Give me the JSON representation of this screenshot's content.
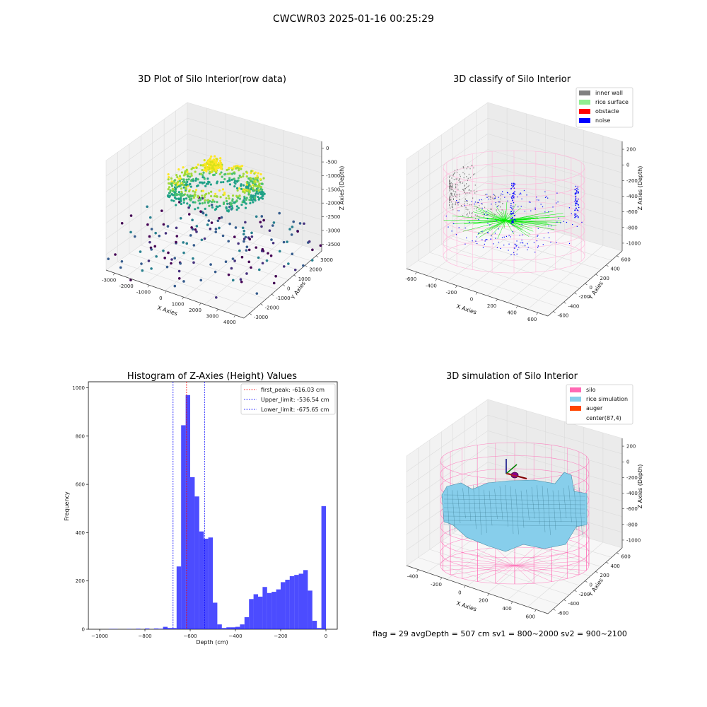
{
  "figure": {
    "suptitle": "CWCWR03 2025-01-16 00:25:29",
    "status_line": "flag = 29  avgDepth = 507 cm  sv1 = 800~2000  sv2 = 900~2100"
  },
  "chart_data": [
    {
      "type": "scatter",
      "projection": "3d",
      "title": "3D Plot of Silo Interior(row data)",
      "xlabel": "X Axies",
      "ylabel": "Y Axies",
      "zlabel": "Z Axies (Depth)",
      "x_ticks": [
        "-3000",
        "-2000",
        "-1000",
        "0",
        "1000",
        "2000",
        "3000",
        "4000"
      ],
      "y_ticks": [
        "-3000",
        "-2000",
        "-1000",
        "0",
        "1000",
        "2000",
        "3000"
      ],
      "z_ticks": [
        "0",
        "-500",
        "-1000",
        "-1500",
        "-2000",
        "-2500",
        "-3000",
        "-3500"
      ],
      "xlim": [
        -3000,
        4000
      ],
      "ylim": [
        -3000,
        3000
      ],
      "zlim": [
        -3500,
        0
      ],
      "colormap": "viridis",
      "description_points": "dense ring of points near depth -1800 to -2500 (green/yellow) with scattered points down to -3500 (purple)"
    },
    {
      "type": "scatter",
      "projection": "3d",
      "title": "3D classify of Silo Interior",
      "xlabel": "X Axies",
      "ylabel": "Y Axies",
      "zlabel": "Z Axies (Depth)",
      "x_ticks": [
        "-600",
        "-400",
        "-200",
        "0",
        "200",
        "400",
        "600"
      ],
      "y_ticks": [
        "-600",
        "-400",
        "-200",
        "0",
        "200",
        "400",
        "600"
      ],
      "z_ticks": [
        "200",
        "0",
        "-200",
        "-400",
        "-600",
        "-800",
        "-1000"
      ],
      "xlim": [
        -600,
        700
      ],
      "ylim": [
        -600,
        600
      ],
      "zlim": [
        -1000,
        300
      ],
      "legend": [
        {
          "label": "inner wall",
          "color": "#808080"
        },
        {
          "label": "rice surface",
          "color": "#90ee90"
        },
        {
          "label": "obstacle",
          "color": "#ff0000"
        },
        {
          "label": "noise",
          "color": "#0000ff"
        }
      ],
      "legend_position": "top-right"
    },
    {
      "type": "bar",
      "title": "Histogram of Z-Axies (Height) Values",
      "xlabel": "Depth (cm)",
      "ylabel": "Frequency",
      "xlim": [
        -1050,
        50
      ],
      "ylim": [
        0,
        1025
      ],
      "x_ticks": [
        -1000,
        -800,
        -600,
        -400,
        -200,
        0
      ],
      "y_ticks": [
        0,
        200,
        400,
        600,
        800,
        1000
      ],
      "bin_width": 20,
      "bins_start": [
        -960,
        -940,
        -920,
        -900,
        -880,
        -860,
        -840,
        -820,
        -800,
        -780,
        -760,
        -740,
        -720,
        -700,
        -680,
        -660,
        -640,
        -620,
        -600,
        -580,
        -560,
        -540,
        -520,
        -500,
        -480,
        -460,
        -440,
        -420,
        -400,
        -380,
        -360,
        -340,
        -320,
        -300,
        -280,
        -260,
        -240,
        -220,
        -200,
        -180,
        -160,
        -140,
        -120,
        -100,
        -80,
        -60,
        -40,
        -20
      ],
      "values": [
        1,
        1,
        0,
        0,
        1,
        0,
        2,
        0,
        3,
        0,
        3,
        2,
        10,
        5,
        5,
        260,
        845,
        970,
        630,
        550,
        405,
        375,
        380,
        110,
        20,
        5,
        8,
        8,
        10,
        20,
        50,
        125,
        145,
        135,
        175,
        150,
        155,
        165,
        195,
        205,
        220,
        225,
        230,
        245,
        160,
        35,
        5,
        510
      ],
      "bar_color": "#0000ff",
      "vlines": [
        {
          "label": "first_peak: -616.03 cm",
          "x": -616.03,
          "color": "#ff0000"
        },
        {
          "label": "Upper_limit: -536.54 cm",
          "x": -536.54,
          "color": "#0000ff"
        },
        {
          "label": "Lower_limit: -675.65 cm",
          "x": -675.65,
          "color": "#0000ff"
        }
      ],
      "legend_position": "top-right"
    },
    {
      "type": "surface",
      "projection": "3d",
      "title": "3D simulation of Silo Interior",
      "xlabel": "X Axies",
      "ylabel": "Y Axies",
      "zlabel": "Z Axies (Depth)",
      "x_ticks": [
        "-400",
        "-200",
        "0",
        "200",
        "400",
        "600"
      ],
      "y_ticks": [
        "-600",
        "-400",
        "-200",
        "0",
        "200",
        "400",
        "600"
      ],
      "z_ticks": [
        "200",
        "0",
        "-200",
        "-400",
        "-600",
        "-800",
        "-1000"
      ],
      "xlim": [
        -500,
        700
      ],
      "ylim": [
        -600,
        600
      ],
      "zlim": [
        -1000,
        300
      ],
      "legend": [
        {
          "label": "silo",
          "color": "#ff69b4"
        },
        {
          "label": "rice simulation",
          "color": "#87ceeb"
        },
        {
          "label": "auger",
          "color": "#ff4500"
        },
        {
          "label": "center(87,4)",
          "color": ""
        }
      ],
      "legend_position": "top-right"
    }
  ]
}
